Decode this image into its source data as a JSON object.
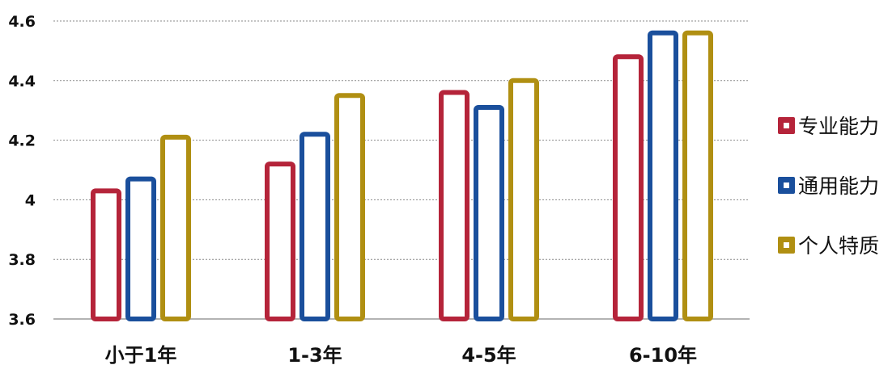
{
  "chart_data": {
    "type": "bar",
    "categories": [
      "小于1年",
      "1-3年",
      "4-5年",
      "6-10年"
    ],
    "series": [
      {
        "name": "专业能力",
        "color": "#b5243a",
        "values": [
          4.03,
          4.12,
          4.36,
          4.48
        ]
      },
      {
        "name": "通用能力",
        "color": "#1a4f9c",
        "values": [
          4.07,
          4.22,
          4.31,
          4.56
        ]
      },
      {
        "name": "个人特质",
        "color": "#b08f12",
        "values": [
          4.21,
          4.35,
          4.4,
          4.56
        ]
      }
    ],
    "y_ticks": [
      "3.6",
      "3.8",
      "4",
      "4.2",
      "4.4",
      "4.6"
    ],
    "ylim": [
      3.6,
      4.6
    ],
    "grid": "dotted-horizontal",
    "legend_position": "right",
    "bar_style": "outlined",
    "title": "",
    "xlabel": "",
    "ylabel": ""
  }
}
